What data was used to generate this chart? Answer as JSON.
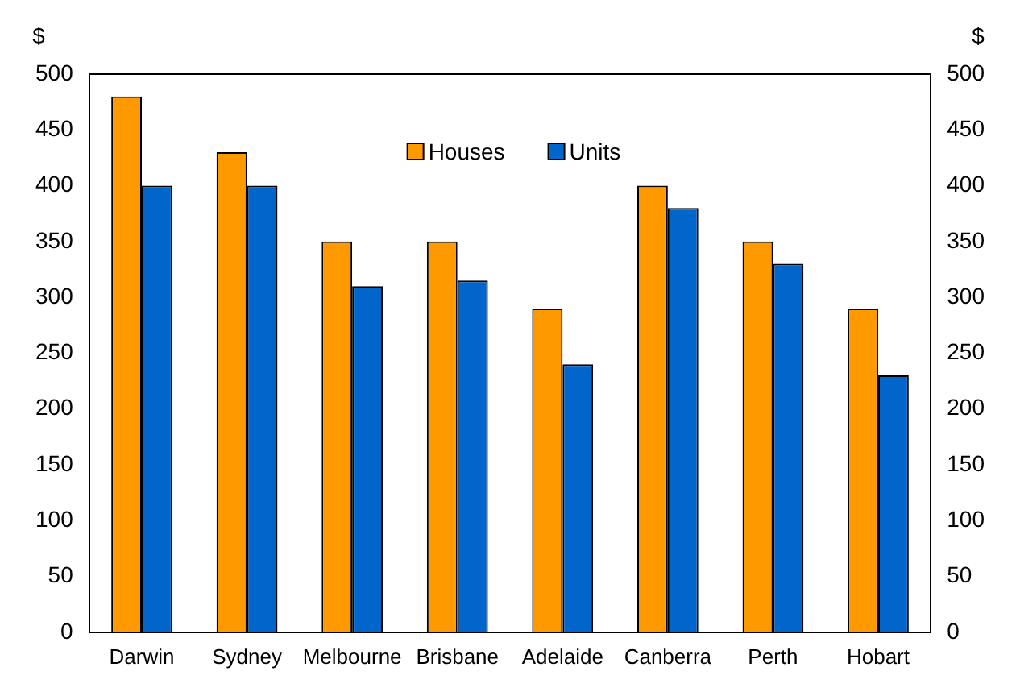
{
  "chart_data": {
    "type": "bar",
    "ylabel": "$",
    "y2label": "$",
    "categories": [
      "Darwin",
      "Sydney",
      "Melbourne",
      "Brisbane",
      "Adelaide",
      "Canberra",
      "Perth",
      "Hobart"
    ],
    "series": [
      {
        "name": "Houses",
        "color": "#ff9900",
        "values": [
          480,
          430,
          350,
          350,
          290,
          400,
          350,
          290
        ]
      },
      {
        "name": "Units",
        "color": "#0066cc",
        "values": [
          400,
          400,
          310,
          315,
          240,
          380,
          330,
          230
        ]
      }
    ],
    "ylim": [
      0,
      500
    ],
    "yticks": [
      0,
      50,
      100,
      150,
      200,
      250,
      300,
      350,
      400,
      450,
      500
    ],
    "y2lim": [
      0,
      500
    ],
    "y2ticks": [
      0,
      50,
      100,
      150,
      200,
      250,
      300,
      350,
      400,
      450,
      500
    ],
    "grid": false,
    "legend": "top"
  }
}
